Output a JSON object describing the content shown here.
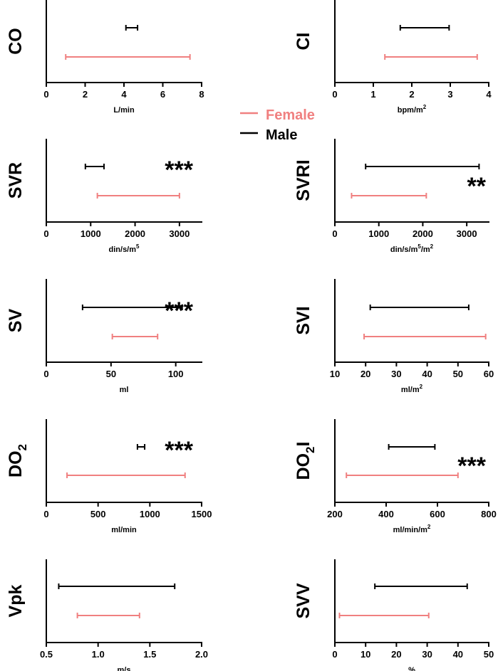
{
  "legend": {
    "placement": "top-center",
    "items": [
      {
        "label": "Female",
        "color": "#F08080"
      },
      {
        "label": "Male",
        "color": "#000000"
      }
    ]
  },
  "chart_data": [
    {
      "type": "range",
      "ylabel": "CO",
      "ylabel_sub": "",
      "xlabel": "L/min",
      "xlabel_sup": "",
      "xlim": [
        0,
        8
      ],
      "ticks": [
        0,
        2,
        4,
        6,
        8
      ],
      "series": [
        {
          "name": "Male",
          "min": 4.1,
          "max": 4.7
        },
        {
          "name": "Female",
          "min": 1.0,
          "max": 7.4
        }
      ],
      "annotation": ""
    },
    {
      "type": "range",
      "ylabel": "CI",
      "ylabel_sub": "",
      "xlabel": "bpm/m",
      "xlabel_sup": "2",
      "xlim": [
        0,
        4
      ],
      "ticks": [
        0,
        1,
        2,
        3,
        4
      ],
      "series": [
        {
          "name": "Male",
          "min": 1.7,
          "max": 2.97
        },
        {
          "name": "Female",
          "min": 1.3,
          "max": 3.7
        }
      ],
      "annotation": ""
    },
    {
      "type": "range",
      "ylabel": "SVR",
      "ylabel_sub": "",
      "xlabel": "din/s/m",
      "xlabel_sup": "5",
      "xlim": [
        0,
        3500
      ],
      "ticks": [
        0,
        1000,
        2000,
        3000
      ],
      "series": [
        {
          "name": "Male",
          "min": 880,
          "max": 1300
        },
        {
          "name": "Female",
          "min": 1150,
          "max": 3000
        }
      ],
      "annotation": "***"
    },
    {
      "type": "range",
      "ylabel": "SVRI",
      "ylabel_sub": "",
      "xlabel": "din/s/m",
      "xlabel_sup": "5",
      "xlabel_tail": "/m",
      "xlabel_sup2": "2",
      "xlim": [
        0,
        3500
      ],
      "ticks": [
        0,
        1000,
        2000,
        3000
      ],
      "series": [
        {
          "name": "Male",
          "min": 700,
          "max": 3280
        },
        {
          "name": "Female",
          "min": 380,
          "max": 2080
        }
      ],
      "annotation": "**"
    },
    {
      "type": "range",
      "ylabel": "SV",
      "ylabel_sub": "",
      "xlabel": "ml",
      "xlabel_sup": "",
      "xlim": [
        0,
        120
      ],
      "ticks": [
        0,
        50,
        100
      ],
      "series": [
        {
          "name": "Male",
          "min": 28,
          "max": 105
        },
        {
          "name": "Female",
          "min": 51,
          "max": 86
        }
      ],
      "annotation": "***"
    },
    {
      "type": "range",
      "ylabel": "SVI",
      "ylabel_sub": "",
      "xlabel": "ml/m",
      "xlabel_sup": "2",
      "xlim": [
        10,
        60
      ],
      "ticks": [
        10,
        20,
        30,
        40,
        50,
        60
      ],
      "series": [
        {
          "name": "Male",
          "min": 21.5,
          "max": 53.5
        },
        {
          "name": "Female",
          "min": 19.5,
          "max": 59
        }
      ],
      "annotation": ""
    },
    {
      "type": "range",
      "ylabel": "DO",
      "ylabel_sub": "2",
      "xlabel": "ml/min",
      "xlabel_sup": "",
      "xlim": [
        0,
        1500
      ],
      "ticks": [
        0,
        500,
        1000,
        1500
      ],
      "series": [
        {
          "name": "Male",
          "min": 880,
          "max": 950
        },
        {
          "name": "Female",
          "min": 200,
          "max": 1340
        }
      ],
      "annotation": "***"
    },
    {
      "type": "range",
      "ylabel": "DO",
      "ylabel_sub": "2",
      "ylabel_tail": "I",
      "xlabel": "ml/min/m",
      "xlabel_sup": "2",
      "xlim": [
        200,
        800
      ],
      "ticks": [
        200,
        400,
        600,
        800
      ],
      "series": [
        {
          "name": "Male",
          "min": 410,
          "max": 590
        },
        {
          "name": "Female",
          "min": 245,
          "max": 680
        }
      ],
      "annotation": "***"
    },
    {
      "type": "range",
      "ylabel": "Vpk",
      "ylabel_sub": "",
      "xlabel": "m/s",
      "xlabel_sup": "",
      "xlim": [
        0.5,
        2.0
      ],
      "ticks": [
        "0.5",
        "1.0",
        "1.5",
        "2.0"
      ],
      "series": [
        {
          "name": "Male",
          "min": 0.62,
          "max": 1.74
        },
        {
          "name": "Female",
          "min": 0.8,
          "max": 1.4
        }
      ],
      "annotation": ""
    },
    {
      "type": "range",
      "ylabel": "SVV",
      "ylabel_sub": "",
      "xlabel": "%",
      "xlabel_sup": "",
      "xlim": [
        0,
        50
      ],
      "ticks": [
        0,
        10,
        20,
        30,
        40,
        50
      ],
      "series": [
        {
          "name": "Male",
          "min": 13,
          "max": 43
        },
        {
          "name": "Female",
          "min": 1.5,
          "max": 30.5
        }
      ],
      "annotation": ""
    }
  ]
}
